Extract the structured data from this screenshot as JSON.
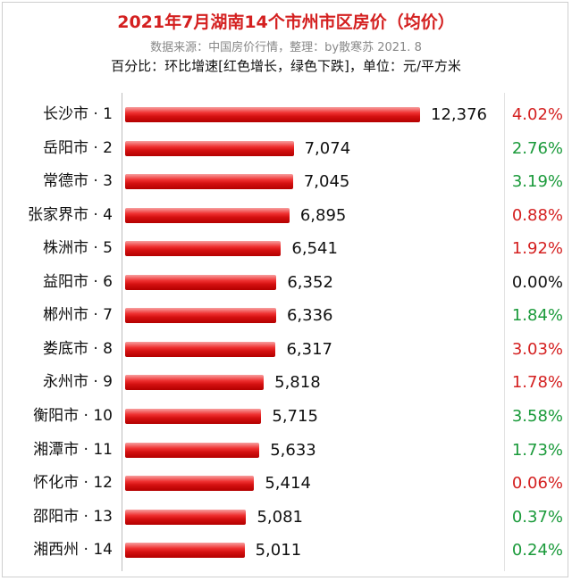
{
  "header": {
    "title": "2021年7月湖南14个市州市区房价（均价）",
    "subtitle": "数据来源：中国房价行情，整理：by散寒苏  2021. 8",
    "note": "百分比：环比增速[红色增长，绿色下跌]，单位：元/平方米"
  },
  "colors": {
    "increase": "#d42020",
    "decrease": "#1a9a3a",
    "neutral": "#111111",
    "bar": "#e01818"
  },
  "chart_data": {
    "type": "bar",
    "orientation": "horizontal",
    "categories": [
      "长沙市 · 1",
      "岳阳市 · 2",
      "常德市 · 3",
      "张家界市 · 4",
      "株洲市 · 5",
      "益阳市 · 6",
      "郴州市 · 7",
      "娄底市 · 8",
      "永州市 · 9",
      "衡阳市 · 10",
      "湘潭市 · 11",
      "怀化市 · 12",
      "邵阳市 · 13",
      "湘西州 · 14"
    ],
    "values": [
      12376,
      7074,
      7045,
      6895,
      6541,
      6352,
      6336,
      6317,
      5818,
      5715,
      5633,
      5414,
      5081,
      5011
    ],
    "value_labels": [
      "12,376",
      "7,074",
      "7,045",
      "6,895",
      "6,541",
      "6,352",
      "6,336",
      "6,317",
      "5,818",
      "5,715",
      "5,633",
      "5,414",
      "5,081",
      "5,011"
    ],
    "change_labels": [
      "4.02%",
      "2.76%",
      "3.19%",
      "0.88%",
      "1.92%",
      "0.00%",
      "1.84%",
      "3.03%",
      "1.78%",
      "3.58%",
      "1.73%",
      "0.06%",
      "0.37%",
      "0.24%"
    ],
    "change_colors": [
      "increase",
      "decrease",
      "decrease",
      "increase",
      "increase",
      "neutral",
      "decrease",
      "increase",
      "increase",
      "decrease",
      "decrease",
      "increase",
      "decrease",
      "decrease"
    ],
    "xlim": [
      0,
      12376
    ],
    "grid": false,
    "legend": "none"
  }
}
